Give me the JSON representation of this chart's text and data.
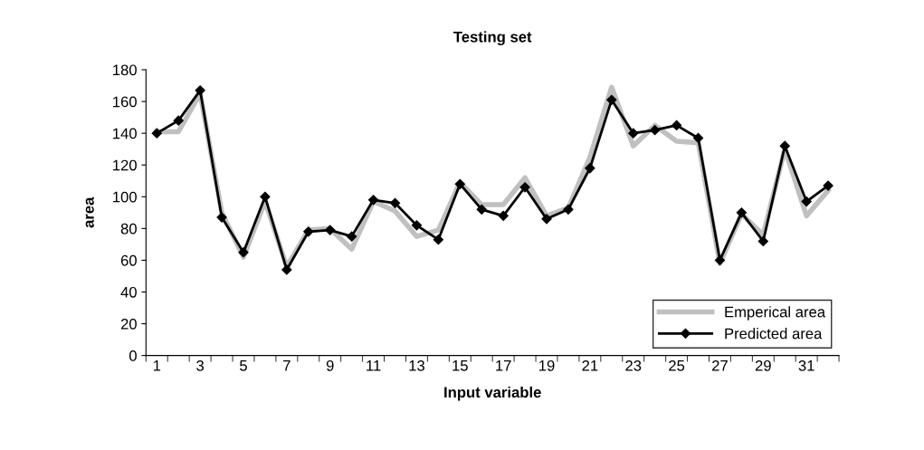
{
  "chart_data": {
    "type": "line",
    "title": "Testing set",
    "xlabel": "Input variable",
    "ylabel": "area",
    "categories": [
      "1",
      null,
      "3",
      null,
      "5",
      null,
      "7",
      null,
      "9",
      null,
      "11",
      null,
      "13",
      null,
      "15",
      null,
      "17",
      null,
      "19",
      null,
      "21",
      null,
      "23",
      null,
      "25",
      null,
      "27",
      null,
      "29",
      null,
      "31",
      null
    ],
    "series": [
      {
        "name": "Emperical area",
        "color": "#c0c0c0",
        "marker": "none",
        "values": [
          141,
          141,
          165,
          90,
          62,
          97,
          56,
          79,
          80,
          67,
          97,
          91,
          75,
          79,
          109,
          95,
          95,
          112,
          88,
          93,
          125,
          169,
          132,
          145,
          135,
          134,
          58,
          89,
          76,
          130,
          88,
          104
        ]
      },
      {
        "name": "Predicted area",
        "color": "#000000",
        "marker": "diamond",
        "values": [
          140,
          148,
          167,
          87,
          65,
          100,
          54,
          78,
          79,
          75,
          98,
          96,
          82,
          73,
          108,
          92,
          88,
          106,
          86,
          92,
          118,
          161,
          140,
          142,
          145,
          137,
          60,
          90,
          72,
          132,
          97,
          107
        ]
      }
    ],
    "ylim": [
      0,
      180
    ],
    "yticks": [
      0,
      20,
      40,
      60,
      80,
      100,
      120,
      140,
      160,
      180
    ],
    "grid": false,
    "legend": "bottom right"
  }
}
